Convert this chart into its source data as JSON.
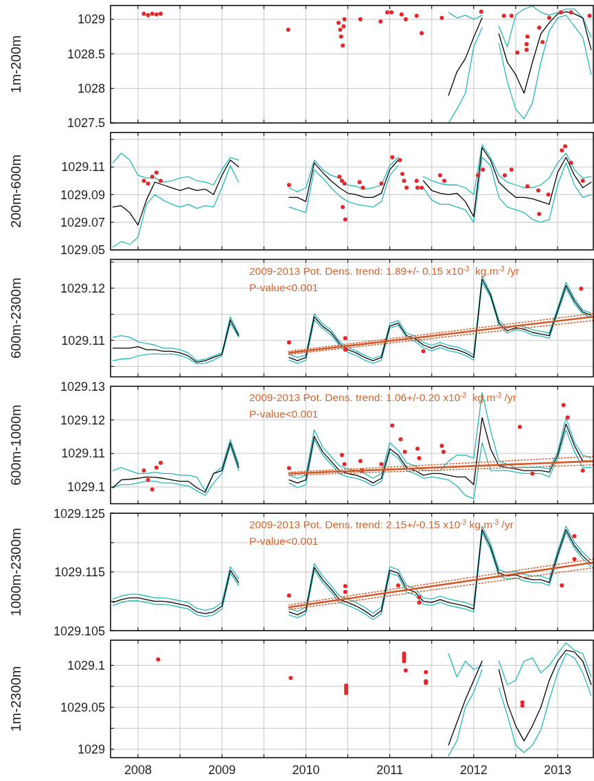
{
  "chart_data": [
    {
      "type": "line",
      "ylabel": "1m-200m",
      "xlim": [
        2007.673,
        2013.425
      ],
      "xticks": [
        2008,
        {
          "value": 2008.5,
          "label": null
        },
        2009,
        {
          "value": 2009.5,
          "label": null
        },
        2010,
        {
          "value": 2010.5,
          "label": null
        },
        2011,
        {
          "value": 2011.5,
          "label": null
        },
        2012,
        {
          "value": 2012.5,
          "label": null
        },
        2013
      ],
      "ylim": [
        1027.5,
        1029.2
      ],
      "yticks": [
        1027.5,
        1028,
        1028.5,
        1029
      ],
      "grid": true,
      "tick_labels": "y",
      "series": [
        {
          "color": "#22b8bb",
          "x": [
            2011.7,
            2011.8,
            2011.9,
            2012,
            2012.1,
            2012.2,
            2012.3,
            2012.4,
            2012.5,
            2012.6,
            2012.7,
            2012.8,
            2012.9,
            2013,
            2013.1,
            2013.2,
            2013.3,
            2013.4
          ],
          "values": [
            1029.1,
            1029.02,
            1029.06,
            1029.0,
            1029.06,
            null,
            1028.9,
            1028.6,
            1029.06,
            1029.15,
            1029.19,
            1029.1,
            1029.06,
            1029.1,
            1029.15,
            1029.15,
            1029.02,
            1028.74
          ]
        },
        {
          "color": "#22b8bb",
          "x": [
            2011.7,
            2011.8,
            2011.9,
            2012,
            2012.1,
            2012.2,
            2012.3,
            2012.4,
            2012.5,
            2012.6,
            2012.7,
            2012.8,
            2012.9,
            2013,
            2013.1,
            2013.2,
            2013.3,
            2013.4
          ],
          "values": [
            1027.5,
            1027.7,
            1027.93,
            1028.6,
            1028.88,
            null,
            1028.65,
            1028.1,
            1027.7,
            1027.56,
            1027.79,
            1028.38,
            1028.83,
            1029.02,
            1029.06,
            1028.9,
            1028.74,
            1028.2
          ]
        },
        {
          "color": "#000000",
          "x": [
            2011.7,
            2011.8,
            2011.9,
            2012,
            2012.1,
            2012.2,
            2012.3,
            2012.4,
            2012.5,
            2012.6,
            2012.7,
            2012.8,
            2012.9,
            2013,
            2013.1,
            2013.2,
            2013.3,
            2013.4
          ],
          "values": [
            1027.9,
            1028.24,
            1028.43,
            1028.74,
            1029.02,
            null,
            1028.79,
            1028.38,
            1028.2,
            1027.93,
            1028.38,
            1028.79,
            1028.95,
            1029.08,
            1029.11,
            1029.08,
            1029.02,
            1028.56
          ]
        },
        {
          "type": "scatter",
          "color": "#e8262a",
          "marker": "circle",
          "x": [
            2008.07,
            2008.12,
            2008.17,
            2008.22,
            2008.27,
            2009.79,
            2010.39,
            2010.41,
            2010.42,
            2010.44,
            2010.46,
            2010.45,
            2010.65,
            2010.89,
            2010.97,
            2011.02,
            2011.14,
            2011.19,
            2011.32,
            2011.38,
            2011.62,
            2012.09,
            2012.36,
            2012.45,
            2012.52,
            2012.63,
            2012.63,
            2012.64,
            2012.78,
            2012.82,
            2012.9,
            2013.04,
            2013.16,
            2013.38
          ],
          "values": [
            1029.08,
            1029.06,
            1029.08,
            1029.07,
            1029.08,
            1028.85,
            1028.95,
            1028.85,
            1028.75,
            1028.62,
            1029.0,
            1028.9,
            1029.0,
            1028.97,
            1029.1,
            1029.1,
            1029.07,
            1029.0,
            1029.05,
            1028.8,
            1029.02,
            1029.11,
            1029.05,
            1029.05,
            1028.52,
            1028.64,
            1028.56,
            1028.75,
            1028.88,
            1028.67,
            1029.02,
            1029.1,
            1029.1,
            1029.05
          ]
        }
      ]
    },
    {
      "type": "line",
      "ylabel": "200m-600m",
      "xlim": [
        2007.673,
        2013.425
      ],
      "xticks": [
        2008,
        {
          "value": 2008.5,
          "label": null
        },
        2009,
        {
          "value": 2009.5,
          "label": null
        },
        2010,
        {
          "value": 2010.5,
          "label": null
        },
        2011,
        {
          "value": 2011.5,
          "label": null
        },
        2012,
        {
          "value": 2012.5,
          "label": null
        },
        2013
      ],
      "ylim": [
        1029.05,
        1029.135
      ],
      "yticks": [
        1029.05,
        1029.07,
        1029.09,
        1029.11,
        {
          "value": 1029.13,
          "label": null
        }
      ],
      "grid": true,
      "tick_labels": "y",
      "x": [
        2007.7,
        2007.8,
        2007.9,
        2008,
        2008.1,
        2008.2,
        2008.3,
        2008.4,
        2008.5,
        2008.6,
        2008.7,
        2008.8,
        2008.9,
        2009,
        2009.1,
        2009.2,
        2009.3,
        2009.4,
        2009.5,
        2009.6,
        2009.7,
        2009.8,
        2009.9,
        2010,
        2010.1,
        2010.2,
        2010.3,
        2010.4,
        2010.5,
        2010.6,
        2010.7,
        2010.8,
        2010.9,
        2011,
        2011.1,
        2011.2,
        2011.3,
        2011.4,
        2011.5,
        2011.6,
        2011.7,
        2011.8,
        2011.9,
        2012,
        2012.1,
        2012.2,
        2012.3,
        2012.4,
        2012.5,
        2012.6,
        2012.7,
        2012.8,
        2012.9,
        2013,
        2013.1,
        2013.2,
        2013.3,
        2013.4
      ],
      "series": [
        {
          "color": "#22b8bb",
          "values": [
            1029.113,
            1029.12,
            1029.115,
            1029.104,
            1029.102,
            1029.102,
            1029.099,
            1029.1,
            1029.102,
            1029.103,
            1029.1,
            1029.099,
            1029.097,
            1029.108,
            1029.117,
            1029.115,
            null,
            null,
            null,
            null,
            null,
            1029.095,
            1029.092,
            1029.095,
            1029.115,
            1029.108,
            1029.104,
            1029.102,
            1029.097,
            1029.096,
            1029.094,
            1029.095,
            1029.097,
            1029.111,
            1029.117,
            null,
            null,
            1029.103,
            1029.1,
            1029.098,
            1029.097,
            1029.097,
            1029.095,
            1029.09,
            1029.126,
            1029.117,
            1029.104,
            1029.099,
            1029.097,
            1029.095,
            1029.095,
            1029.097,
            1029.102,
            1029.113,
            1029.12,
            1029.108,
            1029.102,
            1029.103
          ]
        },
        {
          "color": "#22b8bb",
          "values": [
            1029.052,
            1029.056,
            1029.054,
            1029.059,
            1029.083,
            1029.09,
            1029.086,
            1029.083,
            1029.081,
            1029.083,
            1029.08,
            1029.082,
            1029.081,
            1029.095,
            1029.111,
            1029.099,
            null,
            null,
            null,
            null,
            null,
            1029.081,
            1029.079,
            1029.077,
            1029.108,
            1029.102,
            1029.095,
            1029.089,
            1029.085,
            1029.083,
            1029.082,
            1029.081,
            1029.085,
            1029.104,
            1029.111,
            null,
            null,
            1029.095,
            1029.086,
            1029.083,
            1029.083,
            1029.081,
            1029.079,
            1029.07,
            1029.117,
            1029.111,
            1029.088,
            1029.081,
            1029.079,
            1029.077,
            1029.072,
            1029.07,
            1029.072,
            1029.097,
            1029.113,
            1029.097,
            1029.088,
            1029.09
          ]
        },
        {
          "color": "#000000",
          "values": [
            1029.081,
            1029.082,
            1029.077,
            1029.068,
            1029.086,
            1029.099,
            1029.097,
            1029.095,
            1029.093,
            1029.095,
            1029.093,
            1029.094,
            1029.09,
            1029.104,
            1029.115,
            1029.11,
            null,
            null,
            null,
            null,
            null,
            1029.088,
            1029.088,
            1029.085,
            1029.113,
            1029.106,
            1029.1,
            1029.095,
            1029.091,
            1029.09,
            1029.088,
            1029.088,
            1029.091,
            1029.108,
            1029.115,
            null,
            null,
            1029.1,
            1029.093,
            1029.091,
            1029.09,
            1029.091,
            1029.085,
            1029.074,
            1029.124,
            1029.115,
            1029.099,
            1029.093,
            1029.088,
            1029.088,
            1029.087,
            1029.085,
            1029.083,
            1029.106,
            1029.117,
            1029.104,
            1029.095,
            1029.099
          ]
        },
        {
          "type": "scatter",
          "color": "#e8262a",
          "marker": "circle",
          "x": [
            2008.07,
            2008.12,
            2008.17,
            2008.22,
            2008.27,
            2009.8,
            2010.4,
            2010.43,
            2010.46,
            2010.44,
            2010.47,
            2010.64,
            2010.68,
            2010.9,
            2011.03,
            2011.12,
            2011.15,
            2011.17,
            2011.2,
            2011.32,
            2011.33,
            2011.38,
            2011.6,
            2011.65,
            2012.05,
            2012.11,
            2012.37,
            2012.45,
            2012.64,
            2012.77,
            2012.78,
            2012.89,
            2013.05,
            2013.09,
            2013.16,
            2013.3
          ],
          "values": [
            1029.1,
            1029.098,
            1029.103,
            1029.106,
            1029.1,
            1029.097,
            1029.103,
            1029.1,
            1029.098,
            1029.081,
            1029.072,
            1029.099,
            1029.095,
            1029.098,
            1029.117,
            1029.115,
            1029.105,
            1029.1,
            1029.095,
            1029.1,
            1029.095,
            1029.095,
            1029.104,
            1029.1,
            1029.104,
            1029.108,
            1029.104,
            1029.108,
            1029.096,
            1029.093,
            1029.076,
            1029.09,
            1029.122,
            1029.125,
            1029.113,
            1029.1
          ]
        }
      ]
    },
    {
      "type": "line",
      "ylabel": "600m-2300m",
      "annotations": [
        "2009-2013 Pot. Dens. trend: 1.89+/- 0.15 x10$^{-3}$  kg.m$^{-3}$ /yr",
        "P-value<0.001"
      ],
      "xlim": [
        2007.673,
        2013.425
      ],
      "xticks": [
        2008,
        {
          "value": 2008.5,
          "label": null
        },
        2009,
        {
          "value": 2009.5,
          "label": null
        },
        2010,
        {
          "value": 2010.5,
          "label": null
        },
        2011,
        {
          "value": 2011.5,
          "label": null
        },
        2012,
        {
          "value": 2012.5,
          "label": null
        },
        2013
      ],
      "ylim": [
        1029.103,
        1029.1255
      ],
      "yticks": [
        {
          "value": 1029.105,
          "label": null
        },
        1029.11,
        {
          "value": 1029.115,
          "label": null
        },
        1029.12,
        {
          "value": 1029.125,
          "label": null
        }
      ],
      "grid": true,
      "tick_labels": "y",
      "x": [
        2007.7,
        2007.8,
        2007.9,
        2008,
        2008.1,
        2008.2,
        2008.3,
        2008.4,
        2008.5,
        2008.6,
        2008.7,
        2008.8,
        2008.9,
        2009,
        2009.1,
        2009.2,
        2009.3,
        2009.4,
        2009.5,
        2009.6,
        2009.7,
        2009.8,
        2009.9,
        2010,
        2010.1,
        2010.2,
        2010.3,
        2010.4,
        2010.5,
        2010.6,
        2010.7,
        2010.8,
        2010.9,
        2011,
        2011.1,
        2011.2,
        2011.3,
        2011.4,
        2011.5,
        2011.6,
        2011.7,
        2011.8,
        2011.9,
        2012,
        2012.1,
        2012.2,
        2012.3,
        2012.4,
        2012.5,
        2012.6,
        2012.7,
        2012.8,
        2012.9,
        2013,
        2013.1,
        2013.2,
        2013.3,
        2013.4
      ],
      "series": [
        {
          "color": "#22b8bb",
          "values": [
            1029.1106,
            1029.1109,
            1029.1106,
            1029.1097,
            1029.1094,
            1029.1091,
            1029.1085,
            1029.1085,
            1029.1082,
            1029.1076,
            1029.1061,
            1029.1064,
            1029.107,
            1029.1076,
            1029.1145,
            1029.1112,
            null,
            null,
            null,
            null,
            null,
            1029.1073,
            1029.1067,
            1029.1072,
            1029.1151,
            1029.1132,
            1029.112,
            1029.1098,
            1029.1086,
            1029.108,
            1029.1071,
            1029.1065,
            1029.1071,
            1029.1132,
            1029.1138,
            1029.1114,
            1029.1108,
            1029.1096,
            1029.109,
            1029.1096,
            1029.109,
            1029.1087,
            1029.1081,
            1029.1072,
            1029.1223,
            1029.1191,
            1029.1138,
            1029.1123,
            1029.1129,
            1029.1126,
            1029.112,
            1029.1117,
            1029.1114,
            1029.1162,
            1029.1211,
            1029.118,
            1029.1158,
            1029.1152
          ]
        },
        {
          "color": "#22b8bb",
          "values": [
            1029.1061,
            1029.1064,
            1029.1065,
            1029.107,
            1029.1073,
            1029.1074,
            1029.1073,
            1029.1074,
            1029.1071,
            1029.1065,
            1029.1055,
            1029.1056,
            1029.1062,
            1029.107,
            1029.1133,
            1029.1106,
            null,
            null,
            null,
            null,
            null,
            1029.1062,
            1029.1056,
            1029.1062,
            1029.1139,
            1029.1123,
            1029.111,
            1029.109,
            1029.1077,
            1029.1071,
            1029.1062,
            1029.1056,
            1029.1062,
            1029.1123,
            1029.1129,
            1029.1105,
            1029.1098,
            1029.1086,
            1029.108,
            1029.1086,
            1029.108,
            1029.1077,
            1029.1071,
            1029.1062,
            1029.1211,
            1029.1183,
            1029.1129,
            1029.1114,
            1029.112,
            1029.1117,
            1029.111,
            1029.1108,
            1029.1104,
            1029.1152,
            1029.1199,
            1029.117,
            1029.115,
            1029.1144
          ]
        },
        {
          "color": "#000000",
          "values": [
            1029.1085,
            1029.1085,
            1029.1085,
            1029.1088,
            1029.1082,
            1029.1082,
            1029.1079,
            1029.1079,
            1029.1076,
            1029.107,
            1029.1058,
            1029.1061,
            1029.1067,
            1029.1073,
            1029.1139,
            1029.1109,
            null,
            null,
            null,
            null,
            null,
            1029.1067,
            1029.1061,
            1029.1067,
            1029.1145,
            1029.1127,
            1029.1115,
            1029.1094,
            1029.1082,
            1029.1076,
            1029.1067,
            1029.1061,
            1029.1067,
            1029.1127,
            1029.1133,
            1029.1109,
            1029.1103,
            1029.1091,
            1029.1085,
            1029.1091,
            1029.1085,
            1029.1082,
            1029.1076,
            1029.1067,
            1029.1217,
            1029.1187,
            1029.1133,
            1029.1118,
            1029.1124,
            1029.1121,
            1029.1115,
            1029.1112,
            1029.1109,
            1029.1157,
            1029.1205,
            1029.1175,
            1029.1154,
            1029.1148
          ]
        },
        {
          "type": "scatter",
          "color": "#e8262a",
          "marker": "circle",
          "x": [
            2009.8,
            2010.47,
            2010.47,
            2011.4,
            2013.28
          ],
          "values": [
            1029.1096,
            1029.1104,
            1029.1082,
            1029.1079,
            1029.1199
          ]
        },
        {
          "color": "#d4592a",
          "x": [
            2009.8,
            2013.42
          ],
          "values": [
            1029.1076,
            1029.1145
          ]
        },
        {
          "color": "#d4592a",
          "line_style": "dotted",
          "x": [
            2009.8,
            2013.42
          ],
          "values": [
            1029.1079,
            1029.1151
          ]
        },
        {
          "color": "#d4592a",
          "line_style": "dotted",
          "x": [
            2009.8,
            2013.42
          ],
          "values": [
            1029.1073,
            1029.1138
          ]
        }
      ]
    },
    {
      "type": "line",
      "ylabel": "600m-1000m",
      "annotations": [
        "2009-2013 Pot. Dens. trend: 1.06+/-0.20 x10$^{-3}$  kg.m$^{-3}$ /yr",
        "P-value<0.001"
      ],
      "xlim": [
        2007.673,
        2013.425
      ],
      "xticks": [
        2008,
        {
          "value": 2008.5,
          "label": null
        },
        2009,
        {
          "value": 2009.5,
          "label": null
        },
        2010,
        {
          "value": 2010.5,
          "label": null
        },
        2011,
        {
          "value": 2011.5,
          "label": null
        },
        2012,
        {
          "value": 2012.5,
          "label": null
        },
        2013
      ],
      "ylim": [
        1029.095,
        1029.13
      ],
      "yticks": [
        1029.1,
        1029.11,
        1029.12,
        1029.13
      ],
      "grid": true,
      "tick_labels": "y",
      "x": [
        2007.7,
        2007.8,
        2007.9,
        2008,
        2008.1,
        2008.2,
        2008.3,
        2008.4,
        2008.5,
        2008.6,
        2008.7,
        2008.8,
        2008.9,
        2009,
        2009.1,
        2009.2,
        2009.3,
        2009.4,
        2009.5,
        2009.6,
        2009.7,
        2009.8,
        2009.9,
        2010,
        2010.1,
        2010.2,
        2010.3,
        2010.4,
        2010.5,
        2010.6,
        2010.7,
        2010.8,
        2010.9,
        2011,
        2011.1,
        2011.2,
        2011.3,
        2011.4,
        2011.5,
        2011.6,
        2011.7,
        2011.8,
        2011.9,
        2012,
        2012.1,
        2012.2,
        2012.3,
        2012.4,
        2012.5,
        2012.6,
        2012.7,
        2012.8,
        2012.9,
        2013,
        2013.1,
        2013.2,
        2013.3,
        2013.4
      ],
      "series": [
        {
          "color": "#22b8bb",
          "values": [
            1029.1049,
            1029.1058,
            1029.1049,
            1029.104,
            1029.104,
            1029.1044,
            1029.104,
            1029.104,
            1029.1035,
            1029.1035,
            1029.103,
            1029.0989,
            1029.104,
            1029.1058,
            1029.1142,
            1029.1068,
            null,
            null,
            null,
            null,
            null,
            1029.1035,
            1029.1026,
            1029.1035,
            1029.117,
            1029.1119,
            1029.1091,
            1029.1063,
            1029.1054,
            1029.1049,
            1029.104,
            1029.1026,
            1029.104,
            1029.1132,
            1029.1109,
            1029.1072,
            1029.1063,
            1029.1049,
            1029.1049,
            1029.1049,
            1029.1077,
            1029.1095,
            1029.1095,
            1029.1086,
            1029.1281,
            1029.117,
            1029.1077,
            1029.1068,
            1029.1058,
            1029.1058,
            1029.1058,
            1029.1058,
            1029.1054,
            1029.1105,
            1029.1207,
            1029.1132,
            1029.1095,
            1029.1086
          ]
        },
        {
          "color": "#22b8bb",
          "values": [
            1029.0998,
            1029.1007,
            1029.1007,
            1029.1012,
            1029.1017,
            1029.1017,
            1029.1012,
            1029.1012,
            1029.1007,
            1029.1003,
            1029.0989,
            1029.0975,
            1029.1012,
            1029.104,
            1029.1123,
            1029.1049,
            null,
            null,
            null,
            null,
            null,
            1029.1012,
            1029.0998,
            1029.1007,
            1029.1142,
            1029.1095,
            1029.1068,
            1029.104,
            1029.103,
            1029.1026,
            1029.1017,
            1029.1003,
            1029.1017,
            1029.1105,
            1029.1086,
            1029.1049,
            1029.104,
            1029.1026,
            1029.103,
            1029.1026,
            1029.1021,
            1029.1003,
            1029.0975,
            1029.0965,
            1029.1132,
            1029.1049,
            1029.1049,
            1029.1049,
            1029.1044,
            1029.104,
            1029.104,
            1029.104,
            1029.103,
            1029.1086,
            1029.117,
            1029.1105,
            1029.1058,
            1029.1058
          ]
        },
        {
          "color": "#000000",
          "values": [
            1029.0998,
            1029.1021,
            1029.1023,
            1029.1026,
            1029.103,
            1029.1029,
            1029.1026,
            1029.1021,
            1029.1017,
            1029.1017,
            1029.0998,
            1029.0984,
            1029.104,
            1029.1049,
            1029.1132,
            1029.1058,
            null,
            null,
            null,
            null,
            null,
            1029.1021,
            1029.1012,
            1029.1021,
            1029.1151,
            1029.1105,
            1029.1077,
            1029.1049,
            1029.104,
            1029.1035,
            1029.1026,
            1029.1012,
            1029.1026,
            1029.1114,
            1029.1095,
            1029.1058,
            1029.1049,
            1029.1035,
            1029.104,
            1029.104,
            1029.1035,
            1029.103,
            1029.103,
            1029.1007,
            1029.1207,
            1029.1114,
            1029.1063,
            1029.1058,
            1029.1054,
            1029.1049,
            1029.1049,
            1029.1049,
            1029.1044,
            1029.1095,
            1029.1188,
            1029.1123,
            1029.1077,
            1029.1077
          ]
        },
        {
          "type": "scatter",
          "color": "#e8262a",
          "marker": "circle",
          "x": [
            2008.07,
            2008.12,
            2008.17,
            2008.22,
            2008.27,
            2009.8,
            2010.43,
            2010.46,
            2010.65,
            2010.67,
            2010.9,
            2011.03,
            2011.13,
            2011.18,
            2011.33,
            2011.35,
            2011.62,
            2011.64,
            2012.55,
            2012.7,
            2013.07,
            2013.12,
            2013.3
          ],
          "values": [
            1029.1049,
            1029.1021,
            1029.0993,
            1029.1058,
            1029.1072,
            1029.1056,
            1029.1095,
            1029.1068,
            1029.1077,
            1029.1049,
            1029.1068,
            1029.1183,
            1029.1142,
            1029.1105,
            1029.1114,
            1029.1086,
            1029.1123,
            1029.1105,
            1029.1179,
            1029.104,
            1029.1244,
            1029.1207,
            1029.1049
          ]
        },
        {
          "color": "#d4592a",
          "x": [
            2009.8,
            2013.42
          ],
          "values": [
            1029.104,
            1029.1077
          ]
        },
        {
          "color": "#d4592a",
          "line_style": "dotted",
          "x": [
            2009.8,
            2013.42
          ],
          "values": [
            1029.1044,
            1029.1091
          ]
        },
        {
          "color": "#d4592a",
          "line_style": "dotted",
          "x": [
            2009.8,
            2013.42
          ],
          "values": [
            1029.1035,
            1029.1066
          ]
        }
      ]
    },
    {
      "type": "line",
      "ylabel": "1000m-2300m",
      "annotations": [
        "2009-2013 Pot. Dens. trend: 2.15+/-0.15 x10$^{-3}$ kg.m$^{-3}$ /yr",
        "P-value<0.001"
      ],
      "xlim": [
        2007.673,
        2013.425
      ],
      "xticks": [
        2008,
        {
          "value": 2008.5,
          "label": null
        },
        2009,
        {
          "value": 2009.5,
          "label": null
        },
        2010,
        {
          "value": 2010.5,
          "label": null
        },
        2011,
        {
          "value": 2011.5,
          "label": null
        },
        2012,
        {
          "value": 2012.5,
          "label": null
        },
        2013
      ],
      "ylim": [
        1029.105,
        1029.125
      ],
      "yticks": [
        1029.105,
        {
          "value": 1029.11,
          "label": null
        },
        1029.115,
        {
          "value": 1029.12,
          "label": null
        },
        1029.125
      ],
      "grid": true,
      "tick_labels": "y",
      "x": [
        2007.7,
        2007.8,
        2007.9,
        2008,
        2008.1,
        2008.2,
        2008.3,
        2008.4,
        2008.5,
        2008.6,
        2008.7,
        2008.8,
        2008.9,
        2009,
        2009.1,
        2009.2,
        2009.3,
        2009.4,
        2009.5,
        2009.6,
        2009.7,
        2009.8,
        2009.9,
        2010,
        2010.1,
        2010.2,
        2010.3,
        2010.4,
        2010.5,
        2010.6,
        2010.7,
        2010.8,
        2010.9,
        2011,
        2011.1,
        2011.2,
        2011.3,
        2011.4,
        2011.5,
        2011.6,
        2011.7,
        2011.8,
        2011.9,
        2012,
        2012.1,
        2012.2,
        2012.3,
        2012.4,
        2012.5,
        2012.6,
        2012.7,
        2012.8,
        2012.9,
        2013,
        2013.1,
        2013.2,
        2013.3,
        2013.4
      ],
      "series": [
        {
          "color": "#22b8bb",
          "values": [
            1029.1104,
            1029.1109,
            1029.1112,
            1029.1112,
            1029.1109,
            1029.1106,
            1029.1106,
            1029.1104,
            1029.1101,
            1029.1098,
            1029.1088,
            1029.1085,
            1029.1088,
            1029.1098,
            1029.1159,
            1029.1138,
            null,
            null,
            null,
            null,
            null,
            1029.1088,
            1029.1083,
            1029.109,
            1029.1164,
            1029.1143,
            1029.1127,
            1029.1109,
            1029.1104,
            1029.1098,
            1029.109,
            1029.108,
            1029.109,
            1029.1159,
            1029.1154,
            1029.1127,
            1029.1122,
            1029.1106,
            1029.1104,
            1029.1109,
            1029.1104,
            1029.1101,
            1029.1098,
            1029.1093,
            1029.1228,
            1029.1199,
            1029.1154,
            1029.1149,
            1029.1151,
            1029.1146,
            1029.1143,
            1029.1143,
            1029.1138,
            1029.1186,
            1029.1228,
            1029.1201,
            1029.1183,
            1029.117
          ]
        },
        {
          "color": "#22b8bb",
          "values": [
            1029.1093,
            1029.1098,
            1029.1101,
            1029.1101,
            1029.1098,
            1029.1095,
            1029.1095,
            1029.1093,
            1029.109,
            1029.1087,
            1029.1077,
            1029.1074,
            1029.1077,
            1029.1087,
            1029.1148,
            1029.1127,
            null,
            null,
            null,
            null,
            null,
            1029.1077,
            1029.1072,
            1029.1079,
            1029.1153,
            1029.1132,
            1029.1116,
            1029.1098,
            1029.1093,
            1029.1087,
            1029.1079,
            1029.1069,
            1029.1079,
            1029.1148,
            1029.1143,
            1029.1116,
            1029.1111,
            1029.1095,
            1029.1093,
            1029.1098,
            1029.1093,
            1029.109,
            1029.1087,
            1029.1082,
            1029.1217,
            1029.1188,
            1029.1143,
            1029.1138,
            1029.114,
            1029.1135,
            1029.1132,
            1029.1132,
            1029.1127,
            1029.1175,
            1029.1217,
            1029.119,
            1029.1172,
            1029.1159
          ]
        },
        {
          "color": "#000000",
          "values": [
            1029.1098,
            1029.1103,
            1029.1106,
            1029.1106,
            1029.1103,
            1029.11,
            1029.11,
            1029.1098,
            1029.1095,
            1029.1092,
            1029.1082,
            1029.1079,
            1029.1082,
            1029.1092,
            1029.1153,
            1029.1132,
            null,
            null,
            null,
            null,
            null,
            1029.1082,
            1029.1077,
            1029.1084,
            1029.1158,
            1029.1137,
            1029.1121,
            1029.1103,
            1029.1098,
            1029.1092,
            1029.1084,
            1029.1074,
            1029.1084,
            1029.1153,
            1029.1148,
            1029.1121,
            1029.1116,
            1029.11,
            1029.1098,
            1029.1103,
            1029.1098,
            1029.1095,
            1029.1092,
            1029.1087,
            1029.1222,
            1029.1193,
            1029.1148,
            1029.1143,
            1029.1145,
            1029.114,
            1029.1137,
            1029.1137,
            1029.1132,
            1029.118,
            1029.1222,
            1029.1195,
            1029.1177,
            1029.1164
          ]
        },
        {
          "type": "scatter",
          "color": "#e8262a",
          "marker": "circle",
          "x": [
            2009.8,
            2010.47,
            2010.47,
            2011.1,
            2011.35,
            2011.35,
            2013.05,
            2013.2,
            2013.2
          ],
          "values": [
            1029.111,
            1029.1126,
            1029.1116,
            1029.1127,
            1029.1107,
            1029.1098,
            1029.1127,
            1029.1211,
            1029.1172
          ]
        },
        {
          "color": "#d4592a",
          "x": [
            2009.8,
            2013.42
          ],
          "values": [
            1029.109,
            1029.1166
          ]
        },
        {
          "color": "#d4592a",
          "line_style": "dotted",
          "x": [
            2009.8,
            2013.42
          ],
          "values": [
            1029.1094,
            1029.1172
          ]
        },
        {
          "color": "#d4592a",
          "line_style": "dotted",
          "x": [
            2009.8,
            2013.42
          ],
          "values": [
            1029.1086,
            1029.1157
          ]
        }
      ]
    },
    {
      "type": "line",
      "ylabel": "1m-2300m",
      "xlim": [
        2007.673,
        2013.425
      ],
      "xticks": [
        2008,
        {
          "value": 2008.5,
          "label": null
        },
        2009,
        {
          "value": 2009.5,
          "label": null
        },
        2010,
        {
          "value": 2010.5,
          "label": null
        },
        2011,
        {
          "value": 2011.5,
          "label": null
        },
        2012,
        {
          "value": 2012.5,
          "label": null
        },
        2013
      ],
      "ylim": [
        1028.99,
        1029.13
      ],
      "yticks": [
        1029,
        {
          "value": 1029.025,
          "label": null
        },
        1029.05,
        {
          "value": 1029.075,
          "label": null
        },
        1029.1
      ],
      "grid": true,
      "series": [
        {
          "color": "#22b8bb",
          "x": [
            2011.7,
            2011.8,
            2011.9,
            2012,
            2012.1,
            2012.2,
            2012.3,
            2012.4,
            2012.5,
            2012.6,
            2012.7,
            2012.8,
            2012.9,
            2013,
            2013.1,
            2013.2,
            2013.3,
            2013.4
          ],
          "values": [
            1029.114,
            1029.086,
            1029.105,
            1029.095,
            1029.1,
            null,
            1029.105,
            1029.077,
            1029.082,
            1029.105,
            1029.109,
            1029.091,
            1029.1,
            1029.114,
            1029.127,
            1029.118,
            1029.114,
            1029.086
          ]
        },
        {
          "color": "#22b8bb",
          "x": [
            2011.7,
            2011.8,
            2011.9,
            2012,
            2012.1,
            2012.2,
            2012.3,
            2012.4,
            2012.5,
            2012.6,
            2012.7,
            2012.8,
            2012.9,
            2013,
            2013.1,
            2013.2,
            2013.3,
            2013.4
          ],
          "values": [
            1028.992,
            1029.01,
            1029.05,
            1029.068,
            1029.095,
            null,
            1029.073,
            1029.041,
            1029.005,
            1028.996,
            1029.005,
            1029.023,
            1029.059,
            1029.091,
            1029.114,
            1029.109,
            1029.091,
            1029.064
          ]
        },
        {
          "color": "#000000",
          "x": [
            2011.7,
            2011.8,
            2011.9,
            2012,
            2012.1,
            2012.2,
            2012.3,
            2012.4,
            2012.5,
            2012.6,
            2012.7,
            2012.8,
            2012.9,
            2013,
            2013.1,
            2013.2,
            2013.3,
            2013.4
          ],
          "values": [
            1029.005,
            1029.032,
            1029.059,
            1029.082,
            1029.105,
            null,
            1029.095,
            1029.055,
            1029.028,
            1029.01,
            1029.028,
            1029.05,
            1029.082,
            1029.105,
            1029.118,
            1029.116,
            1029.105,
            1029.077
          ]
        },
        {
          "type": "scatter",
          "color": "#e8262a",
          "marker": "circle",
          "x": [
            2008.24,
            2009.82,
            2010.48,
            2010.48,
            2010.48,
            2010.48,
            2011.17,
            2011.17,
            2011.17,
            2011.17,
            2011.19,
            2011.43,
            2011.43,
            2011.43,
            2012.58,
            2012.58
          ],
          "values": [
            1029.107,
            1029.085,
            1029.076,
            1029.073,
            1029.07,
            1029.067,
            1029.114,
            1029.111,
            1029.108,
            1029.105,
            1029.094,
            1029.092,
            1029.081,
            1029.079,
            1029.056,
            1029.052
          ]
        }
      ]
    }
  ]
}
